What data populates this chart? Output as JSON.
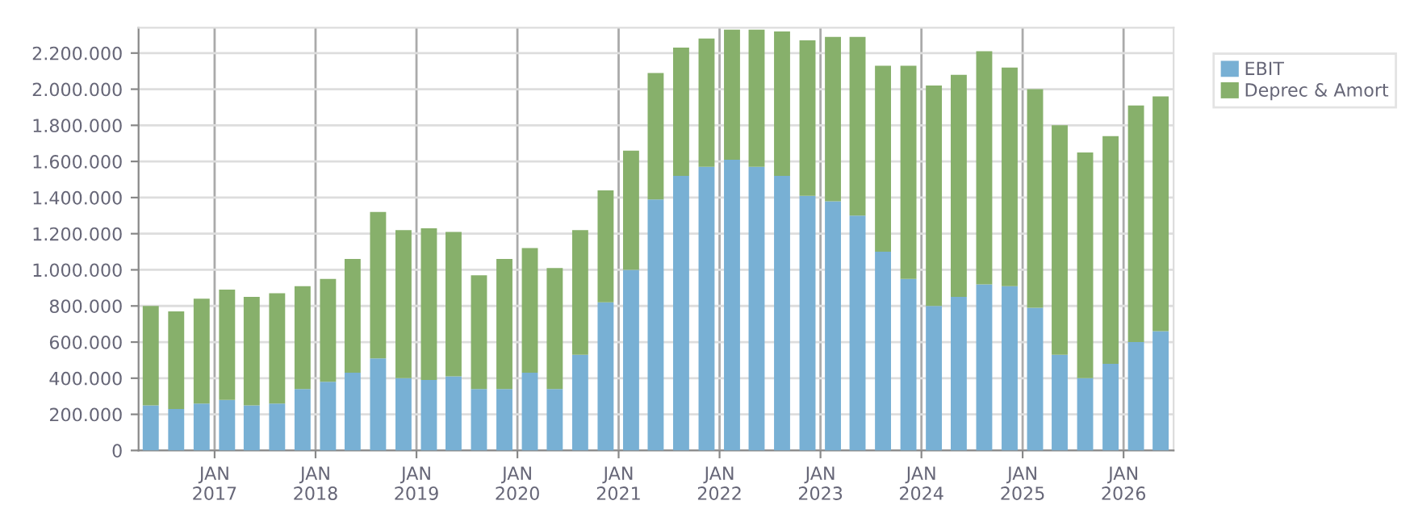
{
  "chart_data": {
    "type": "bar",
    "stacked": true,
    "x": [
      "2016-05-15",
      "2016-08-15",
      "2016-11-15",
      "2017-02-15",
      "2017-05-15",
      "2017-08-15",
      "2017-11-15",
      "2018-02-15",
      "2018-05-15",
      "2018-08-15",
      "2018-11-15",
      "2019-02-15",
      "2019-05-15",
      "2019-08-15",
      "2019-11-15",
      "2020-02-15",
      "2020-05-15",
      "2020-08-15",
      "2020-11-15",
      "2021-02-15",
      "2021-05-15",
      "2021-08-15",
      "2021-11-15",
      "2022-02-15",
      "2022-05-15",
      "2022-08-15",
      "2022-11-15",
      "2023-02-15",
      "2023-05-15",
      "2023-08-15",
      "2023-11-15",
      "2024-02-15",
      "2024-05-15",
      "2024-08-15",
      "2024-11-15",
      "2025-02-15",
      "2025-05-15",
      "2025-08-15",
      "2025-11-15",
      "2026-02-15",
      "2026-05-15"
    ],
    "series": [
      {
        "name": "EBIT",
        "color": "#78b0d4",
        "values": [
          250000,
          230000,
          260000,
          280000,
          250000,
          260000,
          340000,
          380000,
          430000,
          510000,
          400000,
          390000,
          410000,
          340000,
          340000,
          430000,
          340000,
          530000,
          820000,
          1000000,
          1390000,
          1520000,
          1570000,
          1610000,
          1570000,
          1520000,
          1410000,
          1380000,
          1300000,
          1100000,
          950000,
          800000,
          850000,
          920000,
          910000,
          790000,
          530000,
          400000,
          480000,
          600000,
          660000
        ]
      },
      {
        "name": "Deprec & Amort",
        "color": "#87b06b",
        "values": [
          550000,
          540000,
          580000,
          610000,
          600000,
          610000,
          570000,
          570000,
          630000,
          810000,
          820000,
          840000,
          800000,
          630000,
          720000,
          690000,
          670000,
          690000,
          620000,
          660000,
          700000,
          710000,
          710000,
          720000,
          760000,
          800000,
          860000,
          910000,
          990000,
          1030000,
          1180000,
          1220000,
          1230000,
          1290000,
          1210000,
          1210000,
          1270000,
          1250000,
          1260000,
          1310000,
          1300000
        ]
      }
    ],
    "xlim": [
      "2016-04-01",
      "2026-07-01"
    ],
    "xticks": [
      {
        "value": "2017-01-01",
        "label": "JAN\n2017"
      },
      {
        "value": "2018-01-01",
        "label": "JAN\n2018"
      },
      {
        "value": "2019-01-01",
        "label": "JAN\n2019"
      },
      {
        "value": "2020-01-01",
        "label": "JAN\n2020"
      },
      {
        "value": "2021-01-01",
        "label": "JAN\n2021"
      },
      {
        "value": "2022-01-01",
        "label": "JAN\n2022"
      },
      {
        "value": "2023-01-01",
        "label": "JAN\n2023"
      },
      {
        "value": "2024-01-01",
        "label": "JAN\n2024"
      },
      {
        "value": "2025-01-01",
        "label": "JAN\n2025"
      },
      {
        "value": "2026-01-01",
        "label": "JAN\n2026"
      }
    ],
    "ylim": [
      0,
      2340000
    ],
    "yticks": [
      0,
      {
        "value": 200000,
        "label": "200.000"
      },
      {
        "value": 400000,
        "label": "400.000"
      },
      {
        "value": 600000,
        "label": "600.000"
      },
      {
        "value": 800000,
        "label": "800.000"
      },
      {
        "value": 1000000,
        "label": "1.000.000"
      },
      {
        "value": 1200000,
        "label": "1.200.000"
      },
      {
        "value": 1400000,
        "label": "1.400.000"
      },
      {
        "value": 1600000,
        "label": "1.600.000"
      },
      {
        "value": 1800000,
        "label": "1.800.000"
      },
      {
        "value": 2000000,
        "label": "2.000.000"
      },
      {
        "value": 2200000,
        "label": "2.200.000"
      }
    ],
    "grid": true,
    "legend": "top right"
  }
}
